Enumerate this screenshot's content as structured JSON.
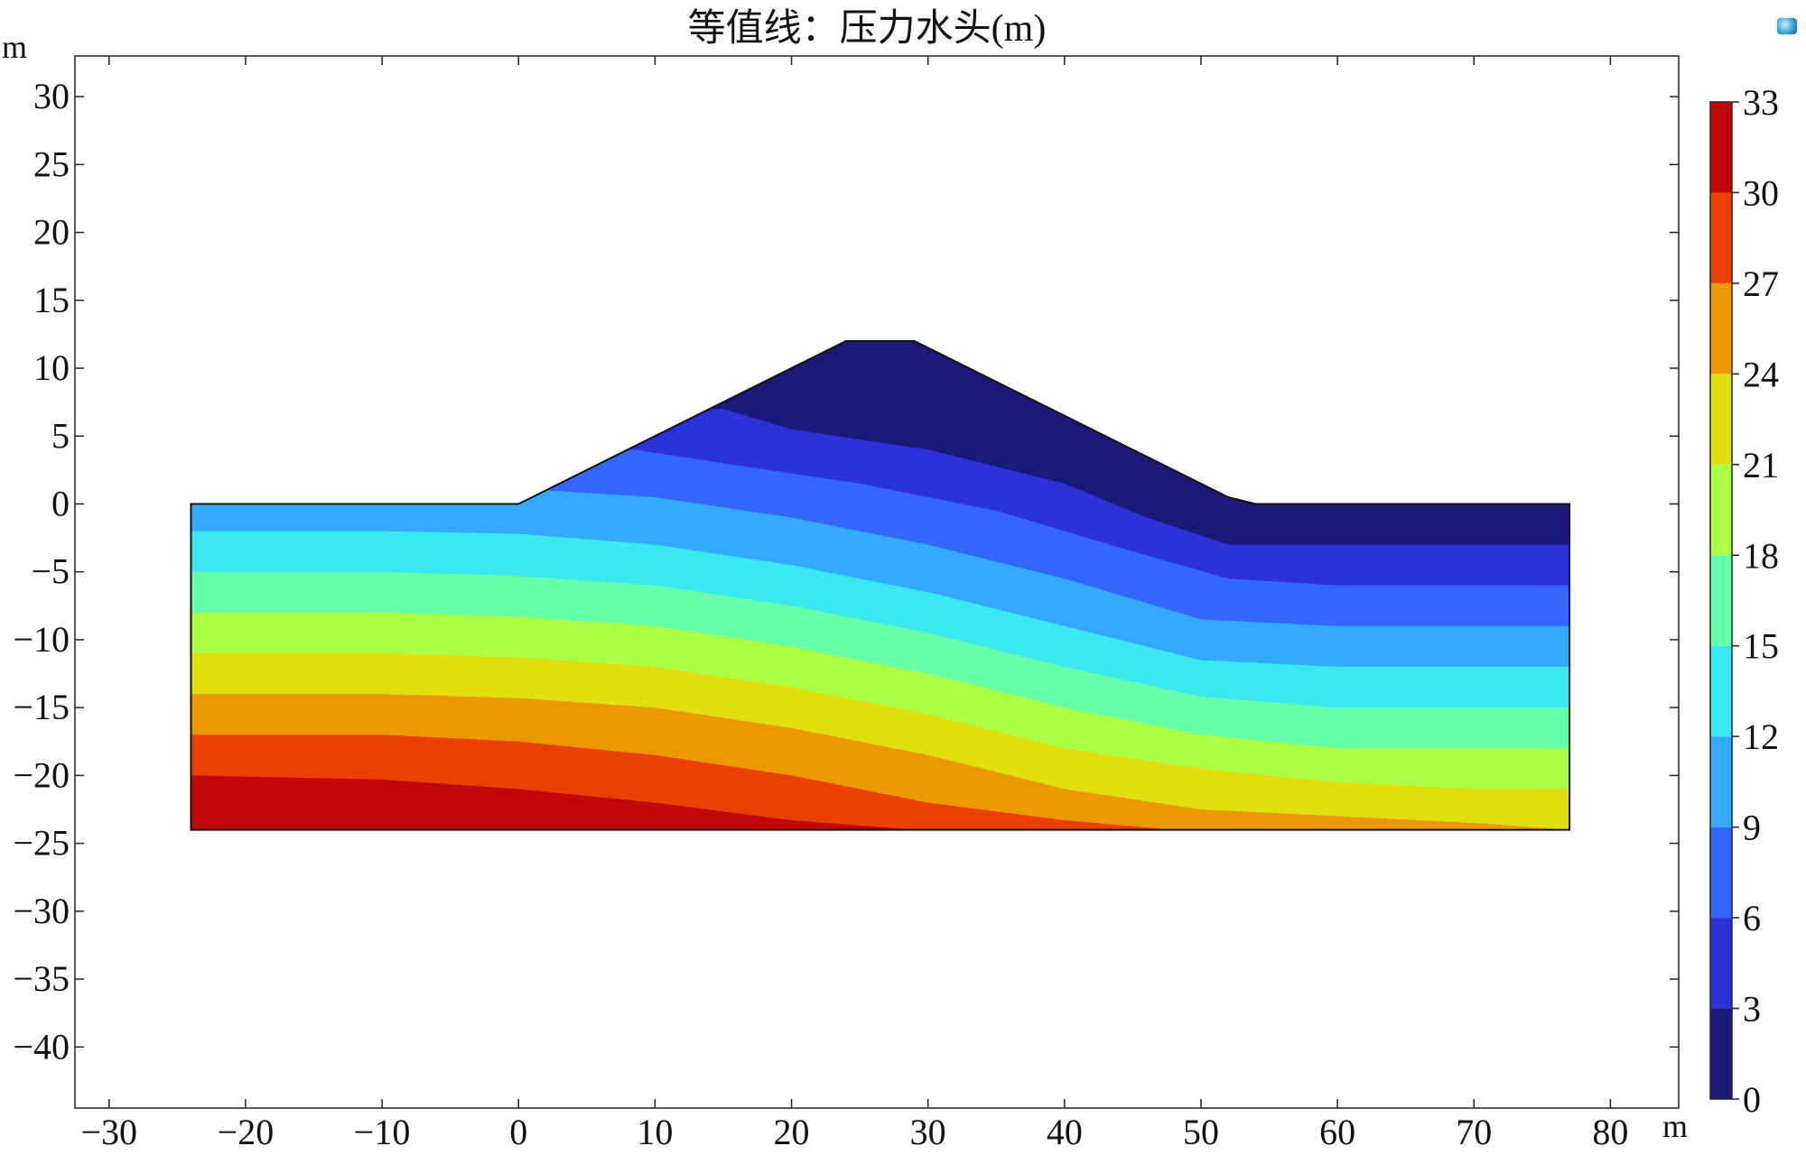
{
  "title": "等值线：压力水头(m)",
  "chart_data": {
    "type": "contour",
    "title": "等值线：压力水头(m)",
    "xlabel": "m",
    "ylabel": "m",
    "xlim": [
      -32.5,
      85
    ],
    "ylim": [
      -44.5,
      33
    ],
    "x_ticks": [
      -30,
      -20,
      -10,
      0,
      10,
      20,
      30,
      40,
      50,
      60,
      70,
      80
    ],
    "y_ticks": [
      -40,
      -35,
      -30,
      -25,
      -20,
      -15,
      -10,
      -5,
      0,
      5,
      10,
      15,
      20,
      25,
      30
    ],
    "x_tick_labels": [
      "−30",
      "−20",
      "−10",
      "0",
      "10",
      "20",
      "30",
      "40",
      "50",
      "60",
      "70",
      "80"
    ],
    "y_tick_labels": [
      "−40",
      "−35",
      "−30",
      "−25",
      "−20",
      "−15",
      "−10",
      "−5",
      "0",
      "5",
      "10",
      "15",
      "20",
      "25",
      "30"
    ],
    "domain_outline": [
      [
        -24,
        -24
      ],
      [
        -24,
        0
      ],
      [
        0,
        0
      ],
      [
        24,
        12
      ],
      [
        29,
        12
      ],
      [
        52,
        0.5
      ],
      [
        54,
        0
      ],
      [
        77,
        0
      ],
      [
        77,
        -24
      ]
    ],
    "contour_levels": [
      0,
      3,
      6,
      9,
      12,
      15,
      18,
      21,
      24,
      27,
      30,
      33
    ],
    "contour_band_colors": [
      "#1a1a78",
      "#2b33d8",
      "#3366ff",
      "#33aaff",
      "#3ae8f0",
      "#66ffaa",
      "#aaff44",
      "#e0e010",
      "#ea9a00",
      "#ea4000",
      "#c00808"
    ],
    "contour_boundaries": [
      [
        [
          15,
          7
        ],
        [
          20,
          5.5
        ],
        [
          30,
          4
        ],
        [
          40,
          1.5
        ],
        [
          46,
          -1
        ],
        [
          52,
          -3
        ],
        [
          60,
          -3
        ],
        [
          70,
          -3
        ],
        [
          77,
          -3
        ]
      ],
      [
        [
          8.5,
          4
        ],
        [
          15,
          3
        ],
        [
          25,
          1.5
        ],
        [
          35,
          -0.5
        ],
        [
          45,
          -3.5
        ],
        [
          52,
          -5.5
        ],
        [
          60,
          -6
        ],
        [
          70,
          -6
        ],
        [
          77,
          -6
        ]
      ],
      [
        [
          2,
          1
        ],
        [
          10,
          0.5
        ],
        [
          20,
          -1
        ],
        [
          30,
          -3
        ],
        [
          40,
          -5.5
        ],
        [
          50,
          -8.5
        ],
        [
          60,
          -9
        ],
        [
          70,
          -9
        ],
        [
          77,
          -9
        ]
      ],
      [
        [
          -24,
          -2
        ],
        [
          -10,
          -2
        ],
        [
          0,
          -2.2
        ],
        [
          10,
          -3
        ],
        [
          20,
          -4.5
        ],
        [
          30,
          -6.5
        ],
        [
          40,
          -9
        ],
        [
          50,
          -11.5
        ],
        [
          60,
          -12
        ],
        [
          70,
          -12
        ],
        [
          77,
          -12
        ]
      ],
      [
        [
          -24,
          -5
        ],
        [
          -10,
          -5
        ],
        [
          0,
          -5.3
        ],
        [
          10,
          -6
        ],
        [
          20,
          -7.5
        ],
        [
          30,
          -9.5
        ],
        [
          40,
          -12
        ],
        [
          50,
          -14.2
        ],
        [
          60,
          -15
        ],
        [
          70,
          -15
        ],
        [
          77,
          -15
        ]
      ],
      [
        [
          -24,
          -8
        ],
        [
          -10,
          -8
        ],
        [
          0,
          -8.3
        ],
        [
          10,
          -9
        ],
        [
          20,
          -10.5
        ],
        [
          30,
          -12.5
        ],
        [
          40,
          -15
        ],
        [
          50,
          -17
        ],
        [
          60,
          -18
        ],
        [
          70,
          -18
        ],
        [
          77,
          -18
        ]
      ],
      [
        [
          -24,
          -11
        ],
        [
          -10,
          -11
        ],
        [
          0,
          -11.3
        ],
        [
          10,
          -12
        ],
        [
          20,
          -13.5
        ],
        [
          30,
          -15.5
        ],
        [
          40,
          -18
        ],
        [
          50,
          -19.5
        ],
        [
          60,
          -20.5
        ],
        [
          70,
          -21
        ],
        [
          77,
          -21
        ]
      ],
      [
        [
          -24,
          -14
        ],
        [
          -10,
          -14
        ],
        [
          0,
          -14.3
        ],
        [
          10,
          -15
        ],
        [
          20,
          -16.5
        ],
        [
          30,
          -18.5
        ],
        [
          40,
          -21
        ],
        [
          50,
          -22.5
        ],
        [
          60,
          -23
        ],
        [
          70,
          -23.5
        ],
        [
          77,
          -24
        ]
      ],
      [
        [
          -24,
          -17
        ],
        [
          -10,
          -17
        ],
        [
          0,
          -17.5
        ],
        [
          10,
          -18.5
        ],
        [
          20,
          -20
        ],
        [
          30,
          -22
        ],
        [
          40,
          -23.3
        ],
        [
          48,
          -24
        ]
      ],
      [
        [
          -24,
          -20
        ],
        [
          -10,
          -20.3
        ],
        [
          0,
          -21
        ],
        [
          10,
          -22
        ],
        [
          20,
          -23.3
        ],
        [
          29,
          -24
        ]
      ]
    ],
    "colorbar": {
      "min": 0,
      "max": 33,
      "tick_labels": [
        "0",
        "3",
        "6",
        "9",
        "12",
        "15",
        "18",
        "21",
        "24",
        "27",
        "30",
        "33"
      ]
    },
    "legend": "colorbar on right",
    "grid": false
  }
}
